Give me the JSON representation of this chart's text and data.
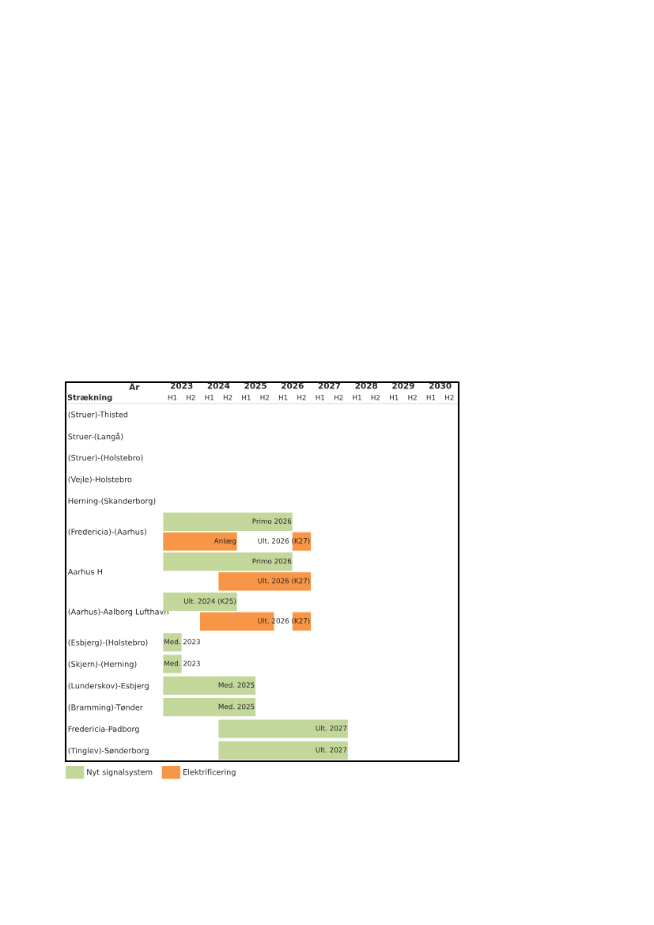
{
  "chart_data": {
    "type": "bar",
    "orientation": "horizontal",
    "categories": [
      "(Struer)-Thisted",
      "Struer-(Langå)",
      "(Struer)-(Holstebro)",
      "(Vejle)-Holstebro",
      "Herning-(Skanderborg)",
      "(Fredericia)-(Aarhus)",
      "Aarhus H",
      "(Aarhus)-Aalborg Lufthavn",
      "(Esbjerg)-(Holstebro)",
      "(Skjern)-(Herning)",
      "(Lunderskov)-Esbjerg",
      "(Bramming)-Tønder",
      "Fredericia-Padborg",
      "(Tinglev)-Sønderborg"
    ],
    "series": [
      {
        "name": "Nyt signalsystem",
        "color": "#c4d79b",
        "base": [
          null,
          null,
          null,
          null,
          null,
          2022.5,
          2022.5,
          2022.5,
          2022.5,
          2022.5,
          2022.5,
          2022.5,
          2024.0,
          2024.0
        ],
        "values": [
          null,
          null,
          null,
          null,
          null,
          3.5,
          3.5,
          2.0,
          0.5,
          0.5,
          2.5,
          2.5,
          3.5,
          3.5
        ],
        "value_labels": [
          null,
          null,
          null,
          null,
          null,
          "Primo 2026",
          "Primo 2026",
          "Ult. 2024 (K25)",
          "Med. 2023",
          "Med. 2023",
          "Med. 2025",
          "Med. 2025",
          "Ult. 2027",
          "Ult. 2027"
        ]
      },
      {
        "name": "Elektrificering",
        "color": "#f79646",
        "base": [
          null,
          null,
          null,
          null,
          null,
          2022.5,
          2024.0,
          2023.5,
          null,
          null,
          null,
          null,
          null,
          null
        ],
        "values": [
          null,
          null,
          null,
          null,
          null,
          2.0,
          2.5,
          2.0,
          null,
          null,
          null,
          null,
          null,
          null
        ],
        "value_labels": [
          null,
          null,
          null,
          null,
          null,
          "Anlæg",
          "Ult. 2026 (K27)",
          null,
          null,
          null,
          null,
          null,
          null,
          null
        ]
      },
      {
        "color": "#f79646",
        "base": [
          null,
          null,
          null,
          null,
          null,
          2026.0,
          null,
          2026.0,
          null,
          null,
          null,
          null,
          null,
          null
        ],
        "values": [
          null,
          null,
          null,
          null,
          null,
          0.5,
          null,
          0.5,
          null,
          null,
          null,
          null,
          null,
          null
        ],
        "value_labels": [
          null,
          null,
          null,
          null,
          null,
          "Ult. 2026 (K27)",
          null,
          "Ult. 2026 (K27)",
          null,
          null,
          null,
          null,
          null,
          null
        ]
      }
    ],
    "xlim": [
      2019.86,
      2030.5
    ],
    "xticks": [
      2023,
      2024,
      2025,
      2026,
      2027,
      2028,
      2029,
      2030
    ],
    "xlabel": "År",
    "ylabel": "Strækning",
    "annotations": [
      "H1",
      "H2",
      "H1",
      "H2",
      "H1",
      "H2",
      "H1",
      "H2",
      "H1",
      "H2",
      "H1",
      "H2",
      "H1",
      "H2",
      "H1",
      "H2"
    ],
    "legend": "bottom left",
    "grid": false
  }
}
